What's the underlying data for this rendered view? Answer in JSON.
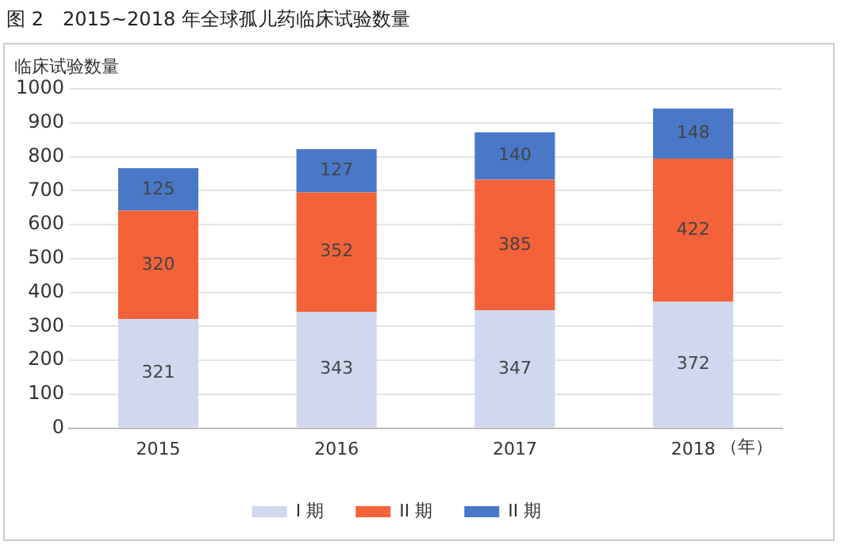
{
  "chart_data": {
    "type": "bar",
    "title": "图 2　2015~2018 年全球孤儿药临床试验数量",
    "ylabel": "临床试验数量",
    "xlabel": "（年）",
    "categories": [
      "2015",
      "2016",
      "2017",
      "2018"
    ],
    "series": [
      {
        "name": "I 期",
        "color": "#d0d8ef",
        "values": [
          321,
          343,
          347,
          372
        ]
      },
      {
        "name": "II 期",
        "color": "#f4623a",
        "values": [
          320,
          352,
          385,
          422
        ]
      },
      {
        "name": "II 期",
        "color": "#4a78c8",
        "values": [
          125,
          127,
          140,
          148
        ]
      }
    ],
    "stacked": true,
    "ylim": [
      0,
      1000
    ],
    "yticks": [
      0,
      100,
      200,
      300,
      400,
      500,
      600,
      700,
      800,
      900,
      1000
    ],
    "grid": "y",
    "legend": "bottom",
    "data_labels": true
  }
}
